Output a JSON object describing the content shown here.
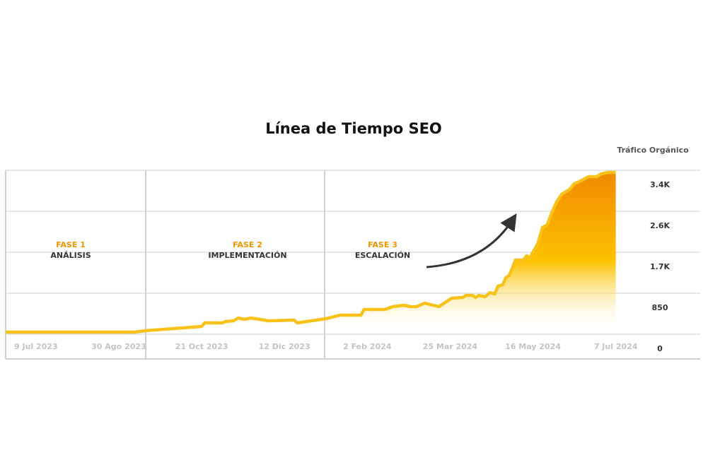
{
  "chart_data": {
    "type": "area",
    "title": "Línea de Tiempo SEO",
    "y_axis_label": "Tráfico Orgánico",
    "x": [
      "2023-06-20",
      "2023-09-09",
      "2023-09-16",
      "2023-10-21",
      "2023-10-23",
      "2023-11-03",
      "2023-11-05",
      "2023-11-10",
      "2023-11-13",
      "2023-11-17",
      "2023-11-21",
      "2023-12-02",
      "2023-12-18",
      "2023-12-20",
      "2024-01-07",
      "2024-01-16",
      "2024-01-29",
      "2024-01-31",
      "2024-02-13",
      "2024-02-18",
      "2024-02-25",
      "2024-02-29",
      "2024-03-04",
      "2024-03-09",
      "2024-03-18",
      "2024-03-26",
      "2024-04-02",
      "2024-04-04",
      "2024-04-08",
      "2024-04-10",
      "2024-04-12",
      "2024-04-16",
      "2024-04-19",
      "2024-04-22",
      "2024-04-24",
      "2024-04-27",
      "2024-04-29",
      "2024-05-01",
      "2024-05-03",
      "2024-05-05",
      "2024-05-10",
      "2024-05-12",
      "2024-05-14",
      "2024-05-19",
      "2024-05-22",
      "2024-05-25",
      "2024-05-28",
      "2024-05-31",
      "2024-06-03",
      "2024-06-08",
      "2024-06-11",
      "2024-06-15",
      "2024-06-20",
      "2024-06-25",
      "2024-06-28",
      "2024-07-02",
      "2024-07-07"
    ],
    "values": [
      44,
      44,
      73,
      161,
      234,
      234,
      264,
      278,
      337,
      308,
      337,
      278,
      293,
      234,
      322,
      396,
      396,
      513,
      513,
      572,
      601,
      572,
      572,
      645,
      572,
      747,
      762,
      806,
      806,
      762,
      806,
      777,
      865,
      835,
      997,
      1026,
      1172,
      1216,
      1363,
      1539,
      1539,
      1627,
      1583,
      1876,
      2213,
      2272,
      2535,
      2755,
      2902,
      3004,
      3122,
      3180,
      3268,
      3268,
      3327,
      3356,
      3356
    ],
    "line_color": "#f9c21a",
    "fill_colors": [
      "#f08a00",
      "#fdc300"
    ],
    "xlim": [
      "2023-06-20",
      "2024-08-29"
    ],
    "xticks": [
      {
        "value": "2023-07-09",
        "label": "9 Jul 2023"
      },
      {
        "value": "2023-08-30",
        "label": "30 Ago 2023"
      },
      {
        "value": "2023-10-21",
        "label": "21 Oct 2023"
      },
      {
        "value": "2023-12-12",
        "label": "12 Dic 2023"
      },
      {
        "value": "2024-02-02",
        "label": "2 Feb 2024"
      },
      {
        "value": "2024-03-25",
        "label": "25 Mar 2024"
      },
      {
        "value": "2024-05-16",
        "label": "16 May 2024"
      },
      {
        "value": "2024-07-07",
        "label": "7 Jul 2024"
      }
    ],
    "ylim": [
      0,
      3400
    ],
    "yticks": [
      0,
      850,
      {
        "value": 1700,
        "label": "1.7K"
      },
      {
        "value": 2550,
        "label": "2.6K"
      },
      {
        "value": 3400,
        "label": "3.4K"
      }
    ],
    "grid": true,
    "phases": [
      {
        "label": "FASE 1",
        "name": "ANÁLISIS"
      },
      {
        "label": "FASE 2",
        "name": "IMPLEMENTACIÓN"
      },
      {
        "label": "FASE 3",
        "name": "ESCALACIÓN"
      }
    ]
  }
}
